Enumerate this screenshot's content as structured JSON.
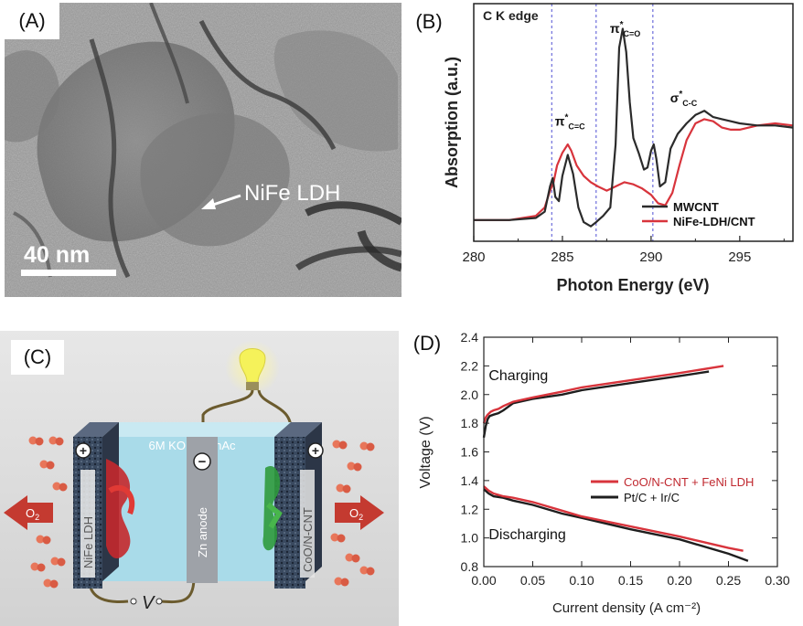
{
  "panels": {
    "a": {
      "label": "(A)",
      "scale_bar": "40 nm",
      "annotation": "NiFe LDH"
    },
    "b": {
      "label": "(B)"
    },
    "c": {
      "label": "(C)",
      "electrolyte": "6M KOH + ZnAc",
      "left_electrode": "NiFe LDH",
      "anode": "Zn anode",
      "right_electrode": "CoO/N-CNT",
      "o2": "O",
      "o2_sub": "2",
      "voltmeter": "V",
      "plus": "+",
      "minus": "−"
    },
    "d": {
      "label": "(D)"
    }
  },
  "colors": {
    "black_series": "#2b2b2b",
    "red_series": "#d8343c",
    "guide_lines": "#6d6ddb",
    "electrolyte": "#a9dbe9",
    "wire": "#6b5b2e",
    "bulb": "#f5f25a",
    "o2_arrow": "#c43a30"
  },
  "chart_data": [
    {
      "type": "line",
      "panel": "B",
      "title": "",
      "corner_text": "C K edge",
      "xlabel": "Photon Energy (eV)",
      "ylabel": "Absorption (a.u.)",
      "xlim": [
        280,
        298
      ],
      "ylim": [
        0,
        1
      ],
      "xticks": [
        280,
        285,
        290,
        295
      ],
      "yticks_shown": false,
      "guide_lines_x": [
        284.4,
        286.9,
        290.1
      ],
      "peak_labels": [
        {
          "main": "π",
          "sup": "*",
          "sub": "C=C",
          "x": 285.3,
          "y": 0.49
        },
        {
          "main": "π",
          "sup": "*",
          "sub": "C=O",
          "x": 288.4,
          "y": 0.93
        },
        {
          "main": "σ",
          "sup": "*",
          "sub": "C-C",
          "x": 291.8,
          "y": 0.6
        }
      ],
      "legend_position": "bottom-right",
      "series": [
        {
          "name": "MWCNT",
          "color": "#2b2b2b",
          "x": [
            280,
            282,
            283.5,
            284.0,
            284.3,
            284.45,
            284.6,
            284.8,
            285.0,
            285.3,
            285.6,
            285.9,
            286.2,
            286.6,
            286.9,
            287.3,
            287.7,
            288.0,
            288.2,
            288.4,
            288.6,
            288.8,
            289.0,
            289.3,
            289.6,
            289.8,
            290.0,
            290.15,
            290.3,
            290.5,
            290.8,
            291.1,
            291.5,
            292.0,
            292.5,
            293.0,
            293.5,
            294.0,
            294.5,
            295,
            296,
            297,
            298
          ],
          "y": [
            0.04,
            0.04,
            0.05,
            0.08,
            0.2,
            0.24,
            0.15,
            0.13,
            0.25,
            0.35,
            0.26,
            0.1,
            0.03,
            0.01,
            0.03,
            0.06,
            0.1,
            0.4,
            0.86,
            0.95,
            0.84,
            0.6,
            0.43,
            0.36,
            0.28,
            0.29,
            0.37,
            0.4,
            0.33,
            0.2,
            0.22,
            0.38,
            0.45,
            0.5,
            0.54,
            0.56,
            0.53,
            0.52,
            0.51,
            0.5,
            0.49,
            0.49,
            0.48
          ]
        },
        {
          "name": "NiFe-LDH/CNT",
          "color": "#d8343c",
          "x": [
            280,
            282,
            283.5,
            284.0,
            284.3,
            284.5,
            284.7,
            285.0,
            285.3,
            285.5,
            285.8,
            286.2,
            286.6,
            287.0,
            287.5,
            288.0,
            288.5,
            289.0,
            289.5,
            290.0,
            290.4,
            290.8,
            291.2,
            291.6,
            292.0,
            292.5,
            293.0,
            293.5,
            294.0,
            294.5,
            295,
            296,
            297,
            298
          ],
          "y": [
            0.04,
            0.04,
            0.06,
            0.1,
            0.18,
            0.22,
            0.3,
            0.36,
            0.4,
            0.37,
            0.3,
            0.25,
            0.22,
            0.2,
            0.18,
            0.2,
            0.22,
            0.21,
            0.19,
            0.16,
            0.12,
            0.11,
            0.17,
            0.3,
            0.42,
            0.5,
            0.52,
            0.51,
            0.48,
            0.47,
            0.47,
            0.49,
            0.5,
            0.49
          ]
        }
      ]
    },
    {
      "type": "line",
      "panel": "D",
      "title": "",
      "xlabel": "Current density (A cm⁻²)",
      "ylabel": "Voltage (V)",
      "xlim": [
        0.0,
        0.3
      ],
      "ylim": [
        0.8,
        2.4
      ],
      "xticks": [
        "0.00",
        "0.05",
        "0.10",
        "0.15",
        "0.20",
        "0.25",
        "0.30"
      ],
      "yticks": [
        "0.8",
        "1.0",
        "1.2",
        "1.4",
        "1.6",
        "1.8",
        "2.0",
        "2.2",
        "2.4"
      ],
      "annotations": [
        {
          "text": "Charging",
          "x": 0.005,
          "y": 2.1
        },
        {
          "text": "Discharging",
          "x": 0.005,
          "y": 0.99
        }
      ],
      "legend_position": "center-right",
      "series": [
        {
          "name": "CoO/N-CNT + FeNi LDH",
          "color": "#d8343c",
          "charge_x": [
            0.0,
            0.002,
            0.004,
            0.007,
            0.01,
            0.015,
            0.02,
            0.03,
            0.05,
            0.08,
            0.1,
            0.15,
            0.2,
            0.245
          ],
          "charge_y": [
            1.8,
            1.84,
            1.86,
            1.88,
            1.89,
            1.9,
            1.92,
            1.95,
            1.98,
            2.02,
            2.05,
            2.1,
            2.15,
            2.2
          ],
          "discharge_x": [
            0.0,
            0.005,
            0.01,
            0.02,
            0.03,
            0.05,
            0.08,
            0.1,
            0.15,
            0.2,
            0.25,
            0.265
          ],
          "discharge_y": [
            1.36,
            1.33,
            1.31,
            1.29,
            1.28,
            1.25,
            1.19,
            1.15,
            1.08,
            1.01,
            0.93,
            0.91
          ]
        },
        {
          "name": "Pt/C + Ir/C",
          "color": "#1e1e1e",
          "charge_x": [
            0.0,
            0.002,
            0.004,
            0.006,
            0.01,
            0.015,
            0.02,
            0.03,
            0.05,
            0.08,
            0.1,
            0.15,
            0.2,
            0.23
          ],
          "charge_y": [
            1.7,
            1.78,
            1.83,
            1.85,
            1.86,
            1.87,
            1.89,
            1.94,
            1.97,
            2.0,
            2.03,
            2.08,
            2.13,
            2.16
          ],
          "discharge_x": [
            0.0,
            0.005,
            0.01,
            0.02,
            0.03,
            0.05,
            0.08,
            0.1,
            0.15,
            0.2,
            0.25,
            0.27
          ],
          "discharge_y": [
            1.34,
            1.31,
            1.29,
            1.28,
            1.26,
            1.23,
            1.17,
            1.14,
            1.06,
            0.99,
            0.89,
            0.84
          ]
        }
      ]
    }
  ]
}
